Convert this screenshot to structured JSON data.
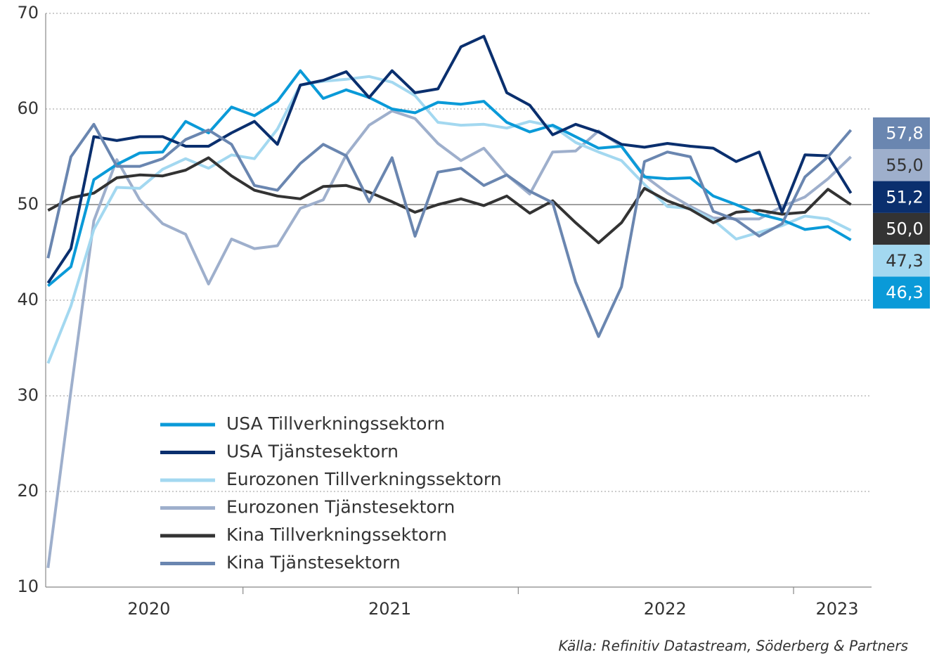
{
  "chart_data": {
    "type": "line",
    "categories": [
      "2020",
      "2020",
      "2020",
      "2020",
      "2020",
      "2020",
      "2020",
      "2020",
      "2020",
      "2021",
      "2021",
      "2021",
      "2021",
      "2021",
      "2021",
      "2021",
      "2021",
      "2021",
      "2021",
      "2021",
      "2021",
      "2022",
      "2022",
      "2022",
      "2022",
      "2022",
      "2022",
      "2022",
      "2022",
      "2022",
      "2022",
      "2022",
      "2022",
      "2023",
      "2023",
      "2023"
    ],
    "ylim": [
      10,
      70
    ],
    "yticks": [
      10,
      20,
      30,
      40,
      50,
      60,
      70
    ],
    "grid": true,
    "reference_line": 50,
    "legend": "lower-left",
    "source": "Källa: Refinitiv Datastream, Söderberg & Partners",
    "series": [
      {
        "name": "USA Tillverkningssektorn",
        "color": "#0a9ad8",
        "end_label": "46,3",
        "values": [
          41.5,
          43.5,
          52.6,
          54.2,
          55.4,
          55.5,
          58.7,
          57.5,
          60.2,
          59.3,
          60.8,
          64.0,
          61.1,
          62.0,
          61.2,
          60.0,
          59.6,
          60.7,
          60.5,
          60.8,
          58.6,
          57.6,
          58.3,
          57.1,
          55.9,
          56.1,
          52.9,
          52.7,
          52.8,
          50.9,
          50.0,
          49.0,
          48.4,
          47.4,
          47.7,
          46.3
        ]
      },
      {
        "name": "USA Tjänstesektorn",
        "color": "#0a2f6e",
        "end_label": "51,2",
        "values": [
          41.8,
          45.4,
          57.1,
          56.7,
          57.1,
          57.1,
          56.1,
          56.1,
          57.5,
          58.7,
          56.3,
          62.5,
          63.0,
          63.9,
          61.2,
          64.0,
          61.7,
          62.1,
          66.5,
          67.6,
          61.7,
          60.4,
          57.3,
          58.4,
          57.6,
          56.3,
          56.0,
          56.4,
          56.1,
          55.9,
          54.5,
          55.5,
          49.2,
          55.2,
          55.1,
          51.2
        ]
      },
      {
        "name": "Eurozonen Tillverkningssektorn",
        "color": "#a3d8f0",
        "end_label": "47,3",
        "values": [
          33.4,
          39.4,
          47.4,
          51.8,
          51.7,
          53.7,
          54.8,
          53.8,
          55.2,
          54.8,
          57.9,
          62.5,
          62.9,
          63.1,
          63.4,
          62.8,
          61.4,
          58.6,
          58.3,
          58.4,
          58.0,
          58.7,
          58.2,
          56.5,
          55.5,
          54.6,
          52.1,
          49.8,
          49.6,
          48.4,
          46.4,
          47.1,
          47.8,
          48.8,
          48.5,
          47.3
        ]
      },
      {
        "name": "Eurozonen Tjänstesektorn",
        "color": "#9eafcc",
        "end_label": "55,0",
        "values": [
          12.0,
          30.5,
          48.3,
          54.7,
          50.5,
          48.0,
          46.9,
          41.7,
          46.4,
          45.4,
          45.7,
          49.6,
          50.5,
          55.2,
          58.3,
          59.8,
          59.0,
          56.4,
          54.6,
          55.9,
          53.1,
          51.1,
          55.5,
          55.6,
          57.7,
          56.1,
          53.0,
          51.2,
          49.8,
          48.6,
          48.5,
          48.5,
          49.8,
          50.8,
          52.7,
          55.0
        ]
      },
      {
        "name": "Kina Tillverkningssektorn",
        "color": "#333333",
        "end_label": "50,0",
        "values": [
          49.4,
          50.7,
          51.2,
          52.8,
          53.1,
          53.0,
          53.6,
          54.9,
          53.0,
          51.5,
          50.9,
          50.6,
          51.9,
          52.0,
          51.3,
          50.3,
          49.2,
          50.0,
          50.6,
          49.9,
          50.9,
          49.1,
          50.4,
          48.1,
          46.0,
          48.1,
          51.7,
          50.4,
          49.5,
          48.1,
          49.2,
          49.4,
          49.0,
          49.2,
          51.6,
          50.0
        ]
      },
      {
        "name": "Kina Tjänstesektorn",
        "color": "#6a86b0",
        "end_label": "57,8",
        "values": [
          44.4,
          55.0,
          58.4,
          54.0,
          54.0,
          54.8,
          56.8,
          57.8,
          56.3,
          52.0,
          51.5,
          54.3,
          56.3,
          55.1,
          50.3,
          54.9,
          46.7,
          53.4,
          53.8,
          52.0,
          53.1,
          51.4,
          50.2,
          41.9,
          36.2,
          41.4,
          54.5,
          55.5,
          55.0,
          49.3,
          48.4,
          46.7,
          48.0,
          52.9,
          55.0,
          57.8
        ]
      }
    ]
  }
}
